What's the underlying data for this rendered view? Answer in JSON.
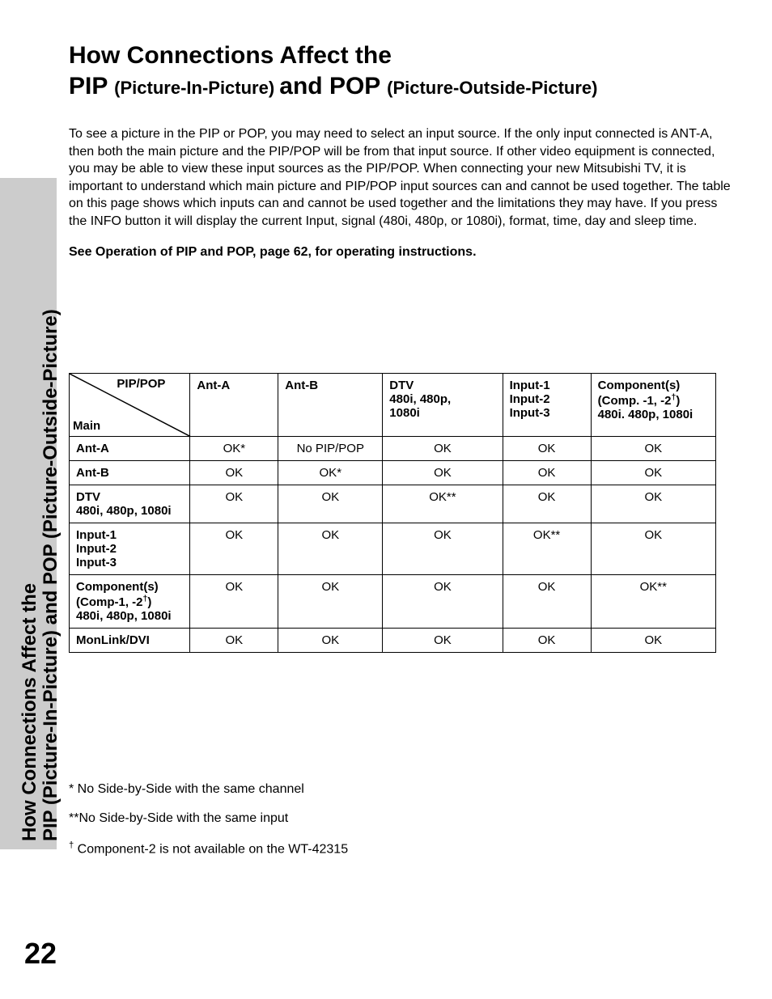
{
  "sidebar": {
    "line1": "How Connections Affect the",
    "line2": "PIP (Picture-In-Picture) and POP (Picture-Outside-Picture)"
  },
  "heading": {
    "line1": "How Connections Affect the",
    "line2_a": "PIP ",
    "line2_b": "(Picture-In-Picture) ",
    "line2_c": "and POP ",
    "line2_d": "(Picture-Outside-Picture)"
  },
  "intro": "To see a picture in the PIP or POP, you may need to select an input source.  If the only input connected is ANT-A, then both the main picture and the PIP/POP will be from that input source.  If other video equipment is connected, you may be able to view these input sources as the PIP/POP.  When connecting your new Mitsubishi TV, it is important to understand which main picture and PIP/POP input sources can and cannot be used together.  The table on this page shows which inputs can and cannot be used together and the limitations they may have.  If you press the INFO button it will display the current Input, signal (480i, 480p, or 1080i), format, time, day and sleep time.",
  "instruction": "See Operation of PIP and POP, page 62, for operating instructions.",
  "table": {
    "corner_top": "PIP/POP",
    "corner_bottom": "Main",
    "columns": [
      "Ant-A",
      "Ant-B",
      "DTV\n480i, 480p,\n1080i",
      "Input-1\nInput-2\nInput-3",
      "Component(s)\n(Comp. -1, -2†)\n480i. 480p, 1080i"
    ],
    "rows": [
      {
        "label": "Ant-A",
        "cells": [
          "OK*",
          "No PIP/POP",
          "OK",
          "OK",
          "OK"
        ]
      },
      {
        "label": "Ant-B",
        "cells": [
          "OK",
          "OK*",
          "OK",
          "OK",
          "OK"
        ]
      },
      {
        "label": "DTV\n480i, 480p, 1080i",
        "cells": [
          "OK",
          "OK",
          "OK**",
          "OK",
          "OK"
        ]
      },
      {
        "label": "Input-1\nInput-2\nInput-3",
        "cells": [
          "OK",
          "OK",
          "OK",
          "OK**",
          "OK"
        ]
      },
      {
        "label": "Component(s)\n(Comp-1, -2†)\n480i, 480p, 1080i",
        "cells": [
          "OK",
          "OK",
          "OK",
          "OK",
          "OK**"
        ]
      },
      {
        "label": "MonLink/DVI",
        "cells": [
          "OK",
          "OK",
          "OK",
          "OK",
          "OK"
        ]
      }
    ]
  },
  "footnotes": {
    "f1": "* No Side-by-Side with the same channel",
    "f2": "**No Side-by-Side with the same input",
    "f3": "† Component-2 is not available on the WT-42315"
  },
  "page_number": "22",
  "style": {
    "page_bg": "#ffffff",
    "sidebar_bg": "#cccccc",
    "text_color": "#000000",
    "border_color": "#000000",
    "heading_fontsize": 30,
    "body_fontsize": 16,
    "table_fontsize": 15,
    "page_num_fontsize": 36
  }
}
